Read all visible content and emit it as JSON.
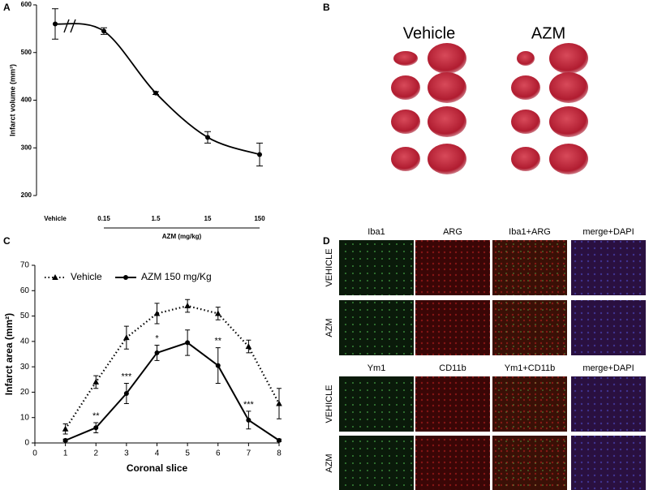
{
  "chart_data": [
    {
      "type": "scatter",
      "label": "A",
      "ylabel": "Infarct volume (mm³)",
      "xlabel": "AZM (mg/kg)",
      "categories": [
        "Vehicle",
        "0.15",
        "1.5",
        "15",
        "150"
      ],
      "values": [
        560,
        545,
        415,
        322,
        286
      ],
      "errors": [
        32,
        7,
        3,
        12,
        24
      ],
      "color": "#000000",
      "ylim": [
        200,
        600
      ],
      "yticks": [
        200,
        300,
        400,
        500,
        600
      ]
    },
    {
      "type": "line",
      "label": "C",
      "ylabel": "Infarct area (mm²)",
      "xlabel": "Coronal slice",
      "x": [
        1,
        2,
        3,
        4,
        5,
        6,
        7,
        8
      ],
      "series": [
        {
          "name": "Vehicle",
          "color": "#000000",
          "marker": "triangle",
          "dash": "dotted",
          "values": [
            5.5,
            24,
            41.5,
            51,
            54,
            51,
            38,
            15.5
          ],
          "errors": [
            2,
            2.5,
            4.5,
            4,
            2.5,
            2.5,
            2.5,
            6
          ]
        },
        {
          "name": "AZM 150 mg/Kg",
          "color": "#000000",
          "marker": "circle",
          "dash": "solid",
          "values": [
            1,
            6,
            19.5,
            35.5,
            39.5,
            30.5,
            9,
            1
          ],
          "errors": [
            0.5,
            2,
            4,
            3,
            5,
            7,
            3.5,
            0.5
          ]
        }
      ],
      "annotations": [
        null,
        "**",
        "***",
        "*",
        null,
        "**",
        "***",
        null
      ],
      "xlim": [
        0,
        8
      ],
      "xticks": [
        0,
        1,
        2,
        3,
        4,
        5,
        6,
        7,
        8
      ],
      "ylim": [
        0,
        70
      ],
      "yticks": [
        0,
        10,
        20,
        30,
        40,
        50,
        60,
        70
      ],
      "legend": "top-left"
    }
  ],
  "panel_b": {
    "label": "B",
    "groups": [
      "Vehicle",
      "AZM"
    ]
  },
  "panel_d": {
    "label": "D",
    "blocks": [
      {
        "columns": [
          "Iba1",
          "ARG",
          "Iba1+ARG",
          "merge+DAPI"
        ],
        "rows": [
          "VEHICLE",
          "AZM"
        ]
      },
      {
        "columns": [
          "Ym1",
          "CD11b",
          "Ym1+CD11b",
          "merge+DAPI"
        ],
        "rows": [
          "VEHICLE",
          "AZM"
        ]
      }
    ]
  }
}
